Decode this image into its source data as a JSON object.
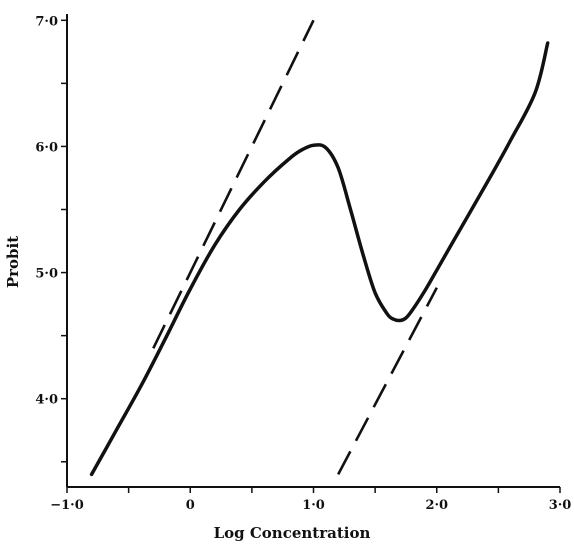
{
  "chart_data": {
    "type": "line",
    "title": "",
    "xlabel": "Log Concentration",
    "ylabel": "Probit",
    "xlim": [
      -1.0,
      3.0
    ],
    "ylim": [
      3.3,
      7.05
    ],
    "grid": false,
    "x_ticks": [
      -1.0,
      -0.5,
      0.0,
      0.5,
      1.0,
      1.5,
      2.0,
      2.5,
      3.0
    ],
    "x_tick_labels": [
      {
        "value": -1.0,
        "label": "−1·0"
      },
      {
        "value": 0.0,
        "label": "0"
      },
      {
        "value": 1.0,
        "label": "1·0"
      },
      {
        "value": 2.0,
        "label": "2·0"
      },
      {
        "value": 3.0,
        "label": "3·0"
      }
    ],
    "y_ticks": [
      3.5,
      4.0,
      4.5,
      5.0,
      5.5,
      6.0,
      6.5,
      7.0
    ],
    "y_tick_labels": [
      {
        "value": 4.0,
        "label": "4·0"
      },
      {
        "value": 5.0,
        "label": "5·0"
      },
      {
        "value": 6.0,
        "label": "6·0"
      },
      {
        "value": 7.0,
        "label": "7·0"
      }
    ],
    "series": [
      {
        "style": "solid",
        "x": [
          -0.8,
          -0.6,
          -0.4,
          -0.2,
          0.0,
          0.2,
          0.4,
          0.6,
          0.8,
          0.9,
          1.0,
          1.1,
          1.2,
          1.3,
          1.4,
          1.5,
          1.6,
          1.65,
          1.7,
          1.75,
          1.8,
          1.9,
          2.0,
          2.2,
          2.4,
          2.6,
          2.8,
          2.9
        ],
        "y": [
          3.4,
          3.75,
          4.1,
          4.48,
          4.87,
          5.22,
          5.5,
          5.72,
          5.9,
          5.97,
          6.01,
          5.99,
          5.83,
          5.5,
          5.15,
          4.84,
          4.67,
          4.63,
          4.62,
          4.64,
          4.7,
          4.85,
          5.02,
          5.36,
          5.7,
          6.05,
          6.43,
          6.82
        ]
      },
      {
        "style": "dashed",
        "x": [
          -0.3,
          1.0
        ],
        "y": [
          4.4,
          7.0
        ]
      },
      {
        "style": "dashed",
        "x": [
          1.2,
          2.0
        ],
        "y": [
          3.4,
          4.88
        ]
      }
    ]
  }
}
